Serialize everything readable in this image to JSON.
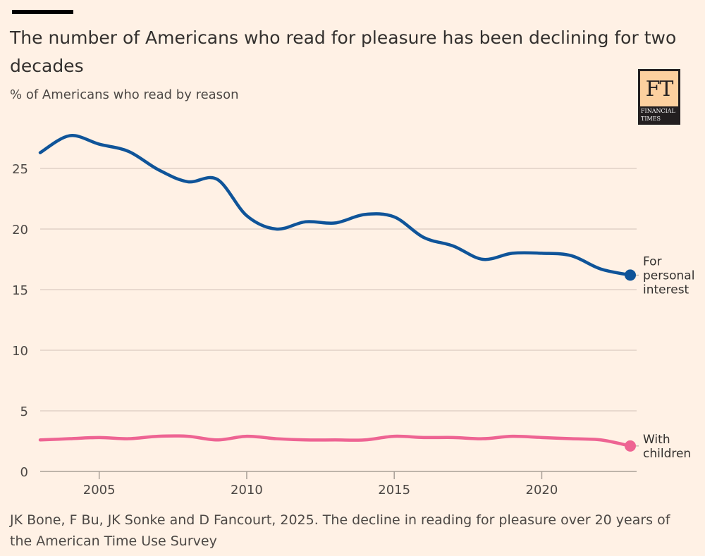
{
  "header": {
    "title": "The number of Americans who read for pleasure has been declining for two decades",
    "subtitle": "% of Americans who read by reason"
  },
  "logo": {
    "mark": "FT",
    "line1": "FINANCIAL",
    "line2": "TIMES"
  },
  "source": "JK Bone, F Bu, JK Sonke and D Fancourt, 2025. The decline in reading for pleasure over 20 years of the American Time Use Survey",
  "colors": {
    "background": "#fff1e5",
    "personal": "#0f5499",
    "children": "#ee6493",
    "grid": "#d9cbc0"
  },
  "chart_data": {
    "type": "line",
    "title": "The number of Americans who read for pleasure has been declining for two decades",
    "subtitle": "% of Americans who read by reason",
    "xlabel": "",
    "ylabel": "",
    "x": [
      2003,
      2004,
      2005,
      2006,
      2007,
      2008,
      2009,
      2010,
      2011,
      2012,
      2013,
      2014,
      2015,
      2016,
      2017,
      2018,
      2019,
      2020,
      2021,
      2022,
      2023
    ],
    "xlim": [
      2003,
      2023
    ],
    "ylim": [
      0,
      27.7
    ],
    "x_ticks": [
      2005,
      2010,
      2015,
      2020
    ],
    "y_ticks": [
      0,
      5,
      10,
      15,
      20,
      25
    ],
    "grid": true,
    "legend": "direct-labels-right",
    "series": [
      {
        "name": "For personal interest",
        "label_lines": [
          "For",
          "personal",
          "interest"
        ],
        "color": "#0f5499",
        "values": [
          26.3,
          27.7,
          27.0,
          26.4,
          24.9,
          23.9,
          24.1,
          21.1,
          20.0,
          20.6,
          20.5,
          21.2,
          21.0,
          19.3,
          18.6,
          17.5,
          18.0,
          18.0,
          17.8,
          16.7,
          16.2
        ]
      },
      {
        "name": "With children",
        "label_lines": [
          "With",
          "children"
        ],
        "color": "#ee6493",
        "values": [
          2.6,
          2.7,
          2.8,
          2.7,
          2.9,
          2.9,
          2.6,
          2.9,
          2.7,
          2.6,
          2.6,
          2.6,
          2.9,
          2.8,
          2.8,
          2.7,
          2.9,
          2.8,
          2.7,
          2.6,
          2.1
        ]
      }
    ]
  }
}
